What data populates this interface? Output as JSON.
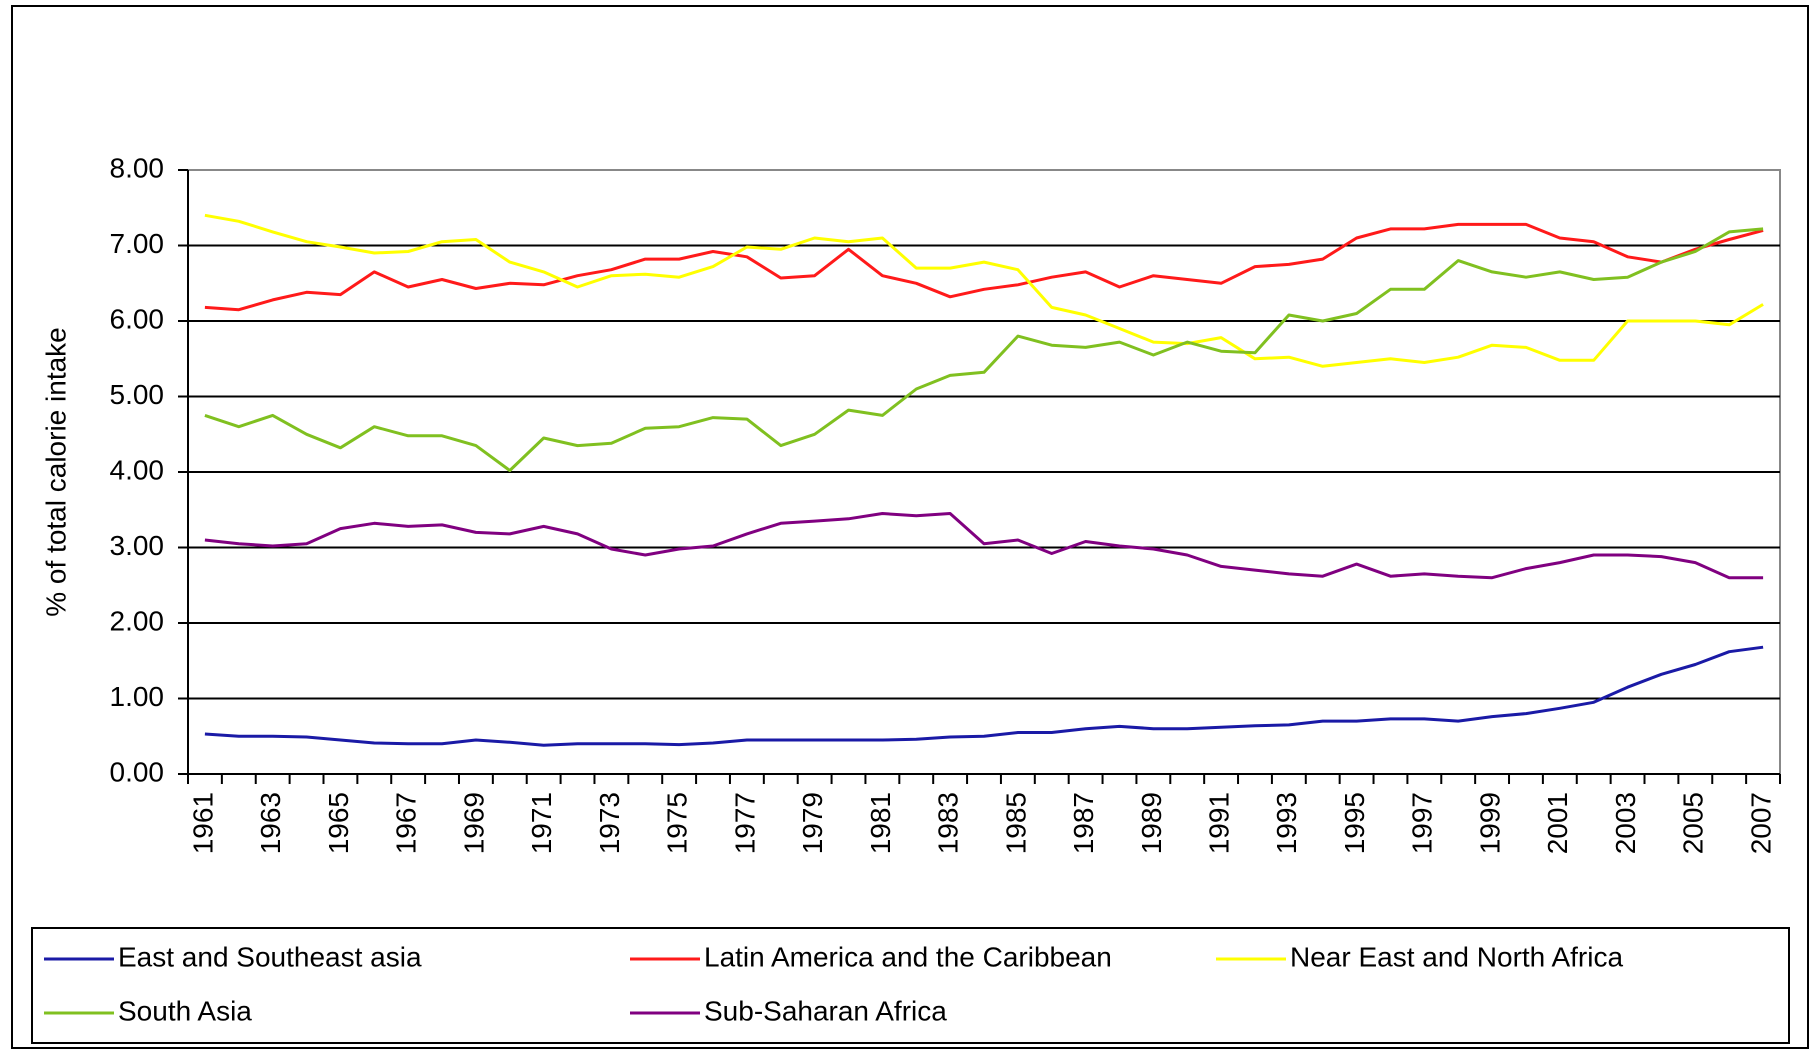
{
  "chart_data": {
    "type": "line",
    "y_label": "% of total calorie intake",
    "categories": [
      "1961",
      null,
      "1963",
      null,
      "1965",
      null,
      "1967",
      null,
      "1969",
      null,
      "1971",
      null,
      "1973",
      null,
      "1975",
      null,
      "1977",
      null,
      "1979",
      null,
      "1981",
      null,
      "1983",
      null,
      "1985",
      null,
      "1987",
      null,
      "1989",
      null,
      "1991",
      null,
      "1993",
      null,
      "1995",
      null,
      "1997",
      null,
      "1999",
      null,
      "2001",
      null,
      "2003",
      null,
      "2005",
      null,
      "2007"
    ],
    "ylim": [
      0,
      8
    ],
    "yticks": [
      {
        "value": 0,
        "label": "0.00"
      },
      {
        "value": 1,
        "label": "1.00"
      },
      {
        "value": 2,
        "label": "2.00"
      },
      {
        "value": 3,
        "label": "3.00"
      },
      {
        "value": 4,
        "label": "4.00"
      },
      {
        "value": 5,
        "label": "5.00"
      },
      {
        "value": 6,
        "label": "6.00"
      },
      {
        "value": 7,
        "label": "7.00"
      },
      {
        "value": 8,
        "label": "8.00"
      }
    ],
    "grid": true,
    "legend": "bottom",
    "series": [
      {
        "name": "East and Southeast asia",
        "color": "#1a1aa6",
        "values": [
          0.53,
          0.5,
          0.5,
          0.49,
          0.45,
          0.41,
          0.4,
          0.4,
          0.45,
          0.42,
          0.38,
          0.4,
          0.4,
          0.4,
          0.39,
          0.41,
          0.45,
          0.45,
          0.45,
          0.45,
          0.45,
          0.46,
          0.49,
          0.5,
          0.55,
          0.55,
          0.6,
          0.63,
          0.6,
          0.6,
          0.62,
          0.64,
          0.65,
          0.7,
          0.7,
          0.73,
          0.73,
          0.7,
          0.76,
          0.8,
          0.87,
          0.95,
          1.15,
          1.32,
          1.45,
          1.62,
          1.68
        ]
      },
      {
        "name": "Latin America and the Caribbean",
        "color": "#ff1a1a",
        "values": [
          6.18,
          6.15,
          6.28,
          6.38,
          6.35,
          6.65,
          6.45,
          6.55,
          6.43,
          6.5,
          6.48,
          6.6,
          6.68,
          6.82,
          6.82,
          6.92,
          6.85,
          6.57,
          6.6,
          6.95,
          6.6,
          6.5,
          6.32,
          6.42,
          6.48,
          6.58,
          6.65,
          6.45,
          6.6,
          6.55,
          6.5,
          6.72,
          6.75,
          6.82,
          7.1,
          7.22,
          7.22,
          7.28,
          7.28,
          7.28,
          7.1,
          7.05,
          6.85,
          6.78,
          6.95,
          7.08,
          7.2
        ]
      },
      {
        "name": "Near East and North Africa",
        "color": "#ffff00",
        "values": [
          7.4,
          7.32,
          7.18,
          7.05,
          6.98,
          6.9,
          6.92,
          7.05,
          7.08,
          6.78,
          6.65,
          6.45,
          6.6,
          6.62,
          6.58,
          6.72,
          6.98,
          6.95,
          7.1,
          7.05,
          7.1,
          6.7,
          6.7,
          6.78,
          6.68,
          6.18,
          6.08,
          5.9,
          5.72,
          5.7,
          5.78,
          5.5,
          5.52,
          5.4,
          5.45,
          5.5,
          5.45,
          5.52,
          5.68,
          5.65,
          5.48,
          5.48,
          6.0,
          6.0,
          6.0,
          5.95,
          6.22
        ]
      },
      {
        "name": "South Asia",
        "color": "#80c020",
        "values": [
          4.75,
          4.6,
          4.75,
          4.5,
          4.32,
          4.6,
          4.48,
          4.48,
          4.35,
          4.02,
          4.45,
          4.35,
          4.38,
          4.58,
          4.6,
          4.72,
          4.7,
          4.35,
          4.5,
          4.82,
          4.75,
          5.1,
          5.28,
          5.32,
          5.8,
          5.68,
          5.65,
          5.72,
          5.55,
          5.72,
          5.6,
          5.58,
          6.08,
          6.0,
          6.1,
          6.42,
          6.42,
          6.8,
          6.65,
          6.58,
          6.65,
          6.55,
          6.58,
          6.78,
          6.92,
          7.18,
          7.22
        ]
      },
      {
        "name": "Sub-Saharan Africa",
        "color": "#800080",
        "values": [
          3.1,
          3.05,
          3.02,
          3.05,
          3.25,
          3.32,
          3.28,
          3.3,
          3.2,
          3.18,
          3.28,
          3.18,
          2.98,
          2.9,
          2.98,
          3.02,
          3.18,
          3.32,
          3.35,
          3.38,
          3.45,
          3.42,
          3.45,
          3.05,
          3.1,
          2.92,
          3.08,
          3.02,
          2.98,
          2.9,
          2.75,
          2.7,
          2.65,
          2.62,
          2.78,
          2.62,
          2.65,
          2.62,
          2.6,
          2.72,
          2.8,
          2.9,
          2.9,
          2.88,
          2.8,
          2.6,
          2.6
        ]
      }
    ]
  }
}
